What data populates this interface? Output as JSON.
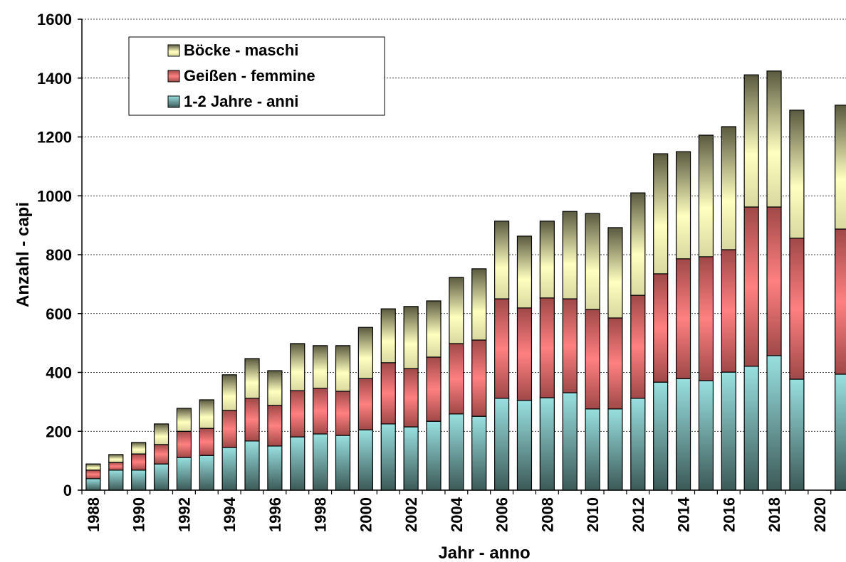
{
  "chart_data": {
    "type": "stacked_bar",
    "x_label": "Jahr - anno",
    "y_label": "Anzahl - capi",
    "categories": [
      "1988",
      null,
      "1990",
      null,
      "1992",
      null,
      "1994",
      null,
      "1996",
      null,
      "1998",
      null,
      "2000",
      null,
      "2002",
      null,
      "2004",
      null,
      "2006",
      null,
      "2008",
      null,
      "2010",
      null,
      "2012",
      null,
      "2014",
      null,
      "2016",
      null,
      "2018",
      null,
      "2020",
      null
    ],
    "series": [
      {
        "name": "1-2 Jahre - anni",
        "color": "#99e0e0",
        "values": [
          39,
          68,
          68,
          89,
          111,
          118,
          145,
          167,
          150,
          181,
          191,
          186,
          205,
          225,
          215,
          234,
          259,
          251,
          312,
          305,
          314,
          331,
          276,
          276,
          312,
          367,
          379,
          372,
          401,
          421,
          457,
          377,
          null,
          394
        ]
      },
      {
        "name": "Geißen - femmine",
        "color": "#ff8080",
        "values": [
          29,
          26,
          55,
          66,
          89,
          92,
          126,
          145,
          138,
          157,
          155,
          150,
          174,
          208,
          198,
          218,
          239,
          259,
          338,
          314,
          339,
          319,
          338,
          309,
          350,
          368,
          407,
          421,
          416,
          541,
          505,
          479,
          null,
          493
        ]
      },
      {
        "name": "Böcke - maschi",
        "color": "#ffffc0",
        "values": [
          21,
          27,
          39,
          70,
          78,
          97,
          121,
          135,
          118,
          160,
          145,
          155,
          174,
          183,
          211,
          191,
          225,
          242,
          264,
          244,
          261,
          297,
          326,
          307,
          348,
          408,
          364,
          413,
          418,
          449,
          462,
          435,
          null,
          421
        ]
      }
    ],
    "ylim": [
      0,
      1600
    ],
    "yticks": [
      0,
      200,
      400,
      600,
      800,
      1000,
      1200,
      1400,
      1600
    ],
    "grid": true
  }
}
